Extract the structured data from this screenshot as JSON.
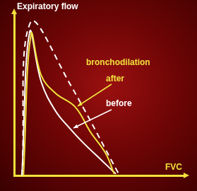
{
  "chart_data": {
    "type": "line",
    "x_label": "FVC",
    "y_label": "Expiratory flow",
    "xlim": [
      0,
      100
    ],
    "ylim": [
      0,
      100
    ],
    "tick_labels": false,
    "grid": false,
    "annotations": [
      {
        "text": "bronchodilation"
      }
    ],
    "series": [
      {
        "color": "#ffffff",
        "line_style": "dashed",
        "x": [
          4.6,
          10,
          32.8,
          62.2
        ],
        "values": [
          0,
          95.6,
          57,
          0
        ]
      },
      {
        "name": "after",
        "color": "#f2e23c",
        "line_style": "solid",
        "x": [
          5.5,
          10,
          16,
          24.4,
          36,
          45,
          54,
          59
        ],
        "values": [
          0,
          87.6,
          62,
          51,
          42.5,
          27,
          13.7,
          1
        ]
      },
      {
        "name": "before",
        "color": "#ffffff",
        "line_style": "solid",
        "x": [
          4.6,
          9.2,
          16,
          24.4,
          33,
          41,
          52,
          60
        ],
        "values": [
          0,
          89,
          58,
          40,
          29,
          20,
          9,
          1
        ]
      }
    ]
  }
}
